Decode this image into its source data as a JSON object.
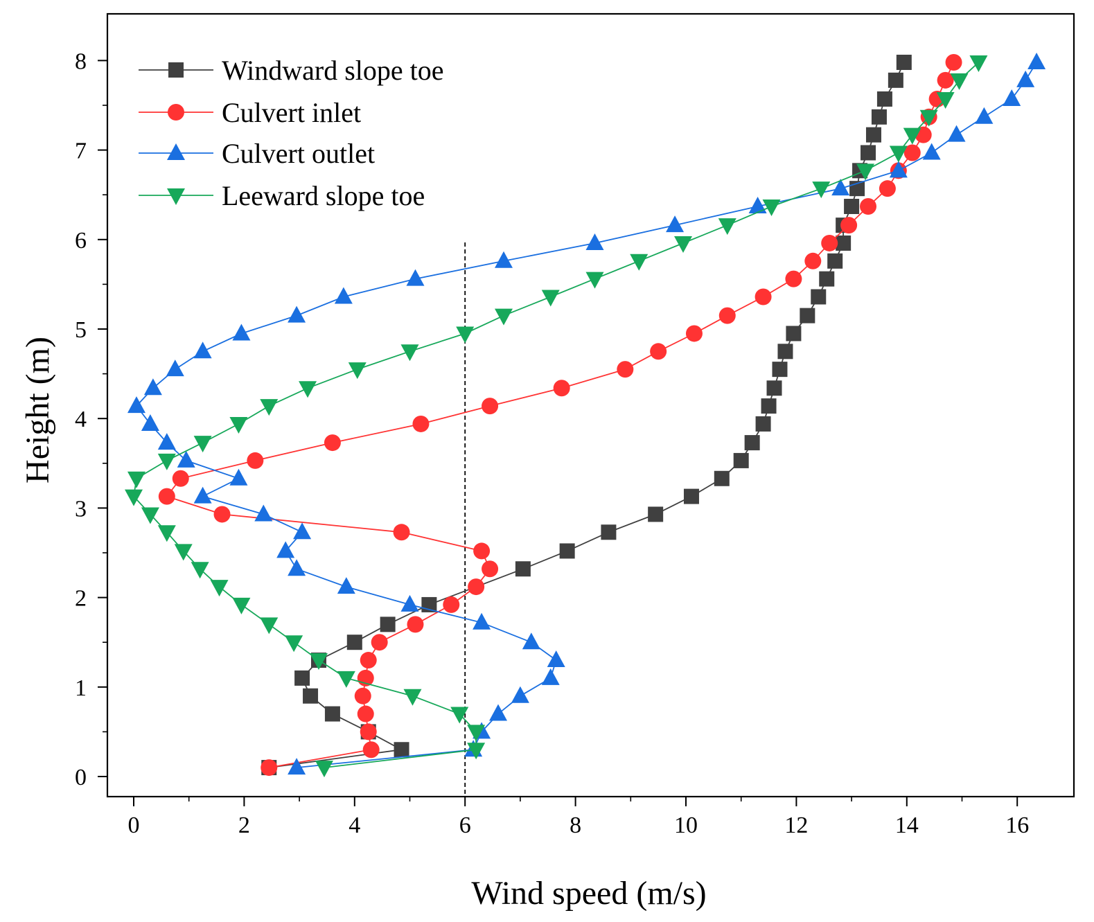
{
  "chart_data": {
    "type": "line",
    "title": "",
    "xlabel": "Wind speed (m/s)",
    "ylabel": "Height (m)",
    "xlim": [
      -0.5,
      17
    ],
    "ylim": [
      -0.3,
      8.55
    ],
    "xticks": [
      0,
      2,
      4,
      6,
      8,
      10,
      12,
      14,
      16
    ],
    "yticks": [
      0,
      1,
      2,
      3,
      4,
      5,
      6,
      7,
      8
    ],
    "xtick_labels": [
      "0",
      "2",
      "4",
      "6",
      "8",
      "10",
      "12",
      "14",
      "16"
    ],
    "ytick_labels": [
      "0",
      "1",
      "2",
      "3",
      "4",
      "5",
      "6",
      "7",
      "8"
    ],
    "grid": false,
    "legend_position": "top-left",
    "reference_line": {
      "x": 6,
      "style": "dashed"
    },
    "series": [
      {
        "name": "Windward slope toe",
        "color": "#404040",
        "marker": "square",
        "points": [
          [
            2.45,
            0.1
          ],
          [
            4.85,
            0.3
          ],
          [
            4.25,
            0.5
          ],
          [
            3.6,
            0.7
          ],
          [
            3.2,
            0.9
          ],
          [
            3.05,
            1.1
          ],
          [
            3.35,
            1.3
          ],
          [
            4.0,
            1.5
          ],
          [
            4.6,
            1.7
          ],
          [
            5.35,
            1.92
          ],
          [
            7.05,
            2.32
          ],
          [
            7.85,
            2.52
          ],
          [
            8.6,
            2.73
          ],
          [
            9.45,
            2.93
          ],
          [
            10.1,
            3.13
          ],
          [
            10.65,
            3.33
          ],
          [
            11.0,
            3.53
          ],
          [
            11.2,
            3.73
          ],
          [
            11.4,
            3.94
          ],
          [
            11.5,
            4.14
          ],
          [
            11.6,
            4.34
          ],
          [
            11.7,
            4.55
          ],
          [
            11.8,
            4.75
          ],
          [
            11.95,
            4.95
          ],
          [
            12.2,
            5.15
          ],
          [
            12.4,
            5.36
          ],
          [
            12.55,
            5.56
          ],
          [
            12.7,
            5.76
          ],
          [
            12.85,
            5.96
          ],
          [
            12.85,
            6.16
          ],
          [
            13.0,
            6.37
          ],
          [
            13.1,
            6.57
          ],
          [
            13.15,
            6.77
          ],
          [
            13.3,
            6.97
          ],
          [
            13.4,
            7.17
          ],
          [
            13.5,
            7.37
          ],
          [
            13.6,
            7.57
          ],
          [
            13.8,
            7.78
          ],
          [
            13.95,
            7.98
          ]
        ]
      },
      {
        "name": "Culvert inlet",
        "color": "#ff3333",
        "marker": "circle",
        "points": [
          [
            2.45,
            0.1
          ],
          [
            4.3,
            0.3
          ],
          [
            4.25,
            0.5
          ],
          [
            4.2,
            0.7
          ],
          [
            4.15,
            0.9
          ],
          [
            4.2,
            1.1
          ],
          [
            4.25,
            1.3
          ],
          [
            4.45,
            1.5
          ],
          [
            5.1,
            1.7
          ],
          [
            5.75,
            1.92
          ],
          [
            6.2,
            2.12
          ],
          [
            6.45,
            2.32
          ],
          [
            6.3,
            2.52
          ],
          [
            4.85,
            2.73
          ],
          [
            1.6,
            2.93
          ],
          [
            0.6,
            3.13
          ],
          [
            0.85,
            3.33
          ],
          [
            2.2,
            3.53
          ],
          [
            3.6,
            3.73
          ],
          [
            5.2,
            3.94
          ],
          [
            6.45,
            4.14
          ],
          [
            7.75,
            4.34
          ],
          [
            8.9,
            4.55
          ],
          [
            9.5,
            4.75
          ],
          [
            10.15,
            4.95
          ],
          [
            10.75,
            5.15
          ],
          [
            11.4,
            5.36
          ],
          [
            11.95,
            5.56
          ],
          [
            12.3,
            5.76
          ],
          [
            12.6,
            5.96
          ],
          [
            12.95,
            6.16
          ],
          [
            13.3,
            6.37
          ],
          [
            13.65,
            6.57
          ],
          [
            13.85,
            6.77
          ],
          [
            14.1,
            6.97
          ],
          [
            14.3,
            7.17
          ],
          [
            14.4,
            7.37
          ],
          [
            14.55,
            7.57
          ],
          [
            14.7,
            7.78
          ],
          [
            14.85,
            7.98
          ]
        ]
      },
      {
        "name": "Culvert outlet",
        "color": "#1a6fe0",
        "marker": "triangle-up",
        "points": [
          [
            2.95,
            0.1
          ],
          [
            6.15,
            0.3
          ],
          [
            6.3,
            0.5
          ],
          [
            6.6,
            0.7
          ],
          [
            7.0,
            0.9
          ],
          [
            7.55,
            1.1
          ],
          [
            7.65,
            1.3
          ],
          [
            7.2,
            1.5
          ],
          [
            6.3,
            1.72
          ],
          [
            5.0,
            1.92
          ],
          [
            3.85,
            2.12
          ],
          [
            2.95,
            2.32
          ],
          [
            2.75,
            2.52
          ],
          [
            3.05,
            2.73
          ],
          [
            2.35,
            2.93
          ],
          [
            1.25,
            3.13
          ],
          [
            1.9,
            3.33
          ],
          [
            0.95,
            3.53
          ],
          [
            0.6,
            3.73
          ],
          [
            0.3,
            3.94
          ],
          [
            0.05,
            4.14
          ],
          [
            0.35,
            4.34
          ],
          [
            0.75,
            4.55
          ],
          [
            1.25,
            4.75
          ],
          [
            1.95,
            4.95
          ],
          [
            2.95,
            5.15
          ],
          [
            3.8,
            5.36
          ],
          [
            5.1,
            5.56
          ],
          [
            6.7,
            5.76
          ],
          [
            8.35,
            5.96
          ],
          [
            9.8,
            6.16
          ],
          [
            11.3,
            6.37
          ],
          [
            12.8,
            6.57
          ],
          [
            13.85,
            6.77
          ],
          [
            14.45,
            6.97
          ],
          [
            14.9,
            7.17
          ],
          [
            15.4,
            7.37
          ],
          [
            15.9,
            7.57
          ],
          [
            16.15,
            7.78
          ],
          [
            16.35,
            7.98
          ]
        ]
      },
      {
        "name": "Leeward slope toe",
        "color": "#17a85a",
        "marker": "triangle-down",
        "points": [
          [
            3.45,
            0.1
          ],
          [
            6.2,
            0.3
          ],
          [
            6.2,
            0.5
          ],
          [
            5.9,
            0.7
          ],
          [
            5.05,
            0.9
          ],
          [
            3.85,
            1.1
          ],
          [
            3.35,
            1.3
          ],
          [
            2.9,
            1.5
          ],
          [
            2.45,
            1.7
          ],
          [
            1.95,
            1.92
          ],
          [
            1.55,
            2.12
          ],
          [
            1.2,
            2.32
          ],
          [
            0.9,
            2.52
          ],
          [
            0.6,
            2.73
          ],
          [
            0.3,
            2.93
          ],
          [
            0.0,
            3.13
          ],
          [
            0.05,
            3.33
          ],
          [
            0.6,
            3.53
          ],
          [
            1.25,
            3.73
          ],
          [
            1.9,
            3.94
          ],
          [
            2.45,
            4.14
          ],
          [
            3.15,
            4.34
          ],
          [
            4.05,
            4.55
          ],
          [
            5.0,
            4.75
          ],
          [
            6.0,
            4.95
          ],
          [
            6.7,
            5.15
          ],
          [
            7.55,
            5.36
          ],
          [
            8.35,
            5.56
          ],
          [
            9.15,
            5.76
          ],
          [
            9.95,
            5.96
          ],
          [
            10.75,
            6.16
          ],
          [
            11.55,
            6.37
          ],
          [
            12.45,
            6.57
          ],
          [
            13.25,
            6.77
          ],
          [
            13.85,
            6.97
          ],
          [
            14.1,
            7.17
          ],
          [
            14.4,
            7.37
          ],
          [
            14.7,
            7.57
          ],
          [
            14.95,
            7.78
          ],
          [
            15.3,
            7.98
          ]
        ]
      }
    ]
  }
}
